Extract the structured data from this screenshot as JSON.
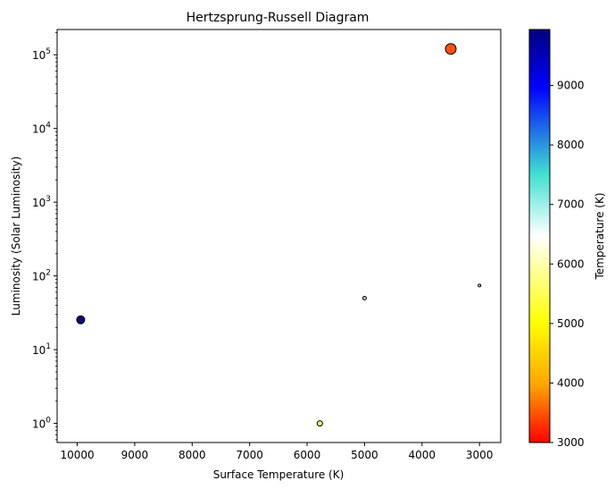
{
  "chart_data": {
    "type": "scatter",
    "title": "Hertzsprung-Russell Diagram",
    "xlabel": "Surface Temperature (K)",
    "ylabel": "Luminosity (Solar Luminosity)",
    "x_inverted": true,
    "xlim": [
      10350,
      2630
    ],
    "x_ticks": [
      10000,
      9000,
      8000,
      7000,
      6000,
      5000,
      4000,
      3000
    ],
    "y_scale": "log",
    "ylim": [
      0.55,
      220000
    ],
    "y_ticks": [
      {
        "value": 1,
        "label": "10",
        "exp": "0"
      },
      {
        "value": 10,
        "label": "10",
        "exp": "1"
      },
      {
        "value": 100,
        "label": "10",
        "exp": "2"
      },
      {
        "value": 1000,
        "label": "10",
        "exp": "3"
      },
      {
        "value": 10000,
        "label": "10",
        "exp": "4"
      },
      {
        "value": 100000,
        "label": "10",
        "exp": "5"
      }
    ],
    "points": [
      {
        "temperature": 9940,
        "luminosity": 25.4,
        "size": 4.5,
        "color": "#0a0a7a"
      },
      {
        "temperature": 5778,
        "luminosity": 1.0,
        "size": 3,
        "color": "#f2f27a"
      },
      {
        "temperature": 5000,
        "luminosity": 50,
        "size": 2,
        "color": "#c8c8c8"
      },
      {
        "temperature": 3500,
        "luminosity": 120000,
        "size": 6,
        "color": "#ff4d10"
      },
      {
        "temperature": 3000,
        "luminosity": 74,
        "size": 1.5,
        "color": "#dddddd"
      }
    ],
    "colorbar": {
      "label": "Temperature (K)",
      "range": [
        3000,
        9940
      ],
      "ticks": [
        3000,
        4000,
        5000,
        6000,
        7000,
        8000,
        9000
      ],
      "stops": [
        {
          "offset": 0,
          "color": "#ff0000"
        },
        {
          "offset": 0.14,
          "color": "#ffa500"
        },
        {
          "offset": 0.29,
          "color": "#ffff00"
        },
        {
          "offset": 0.5,
          "color": "#ffffff"
        },
        {
          "offset": 0.65,
          "color": "#40e0d0"
        },
        {
          "offset": 0.86,
          "color": "#0000ff"
        },
        {
          "offset": 1,
          "color": "#00007f"
        }
      ]
    }
  }
}
